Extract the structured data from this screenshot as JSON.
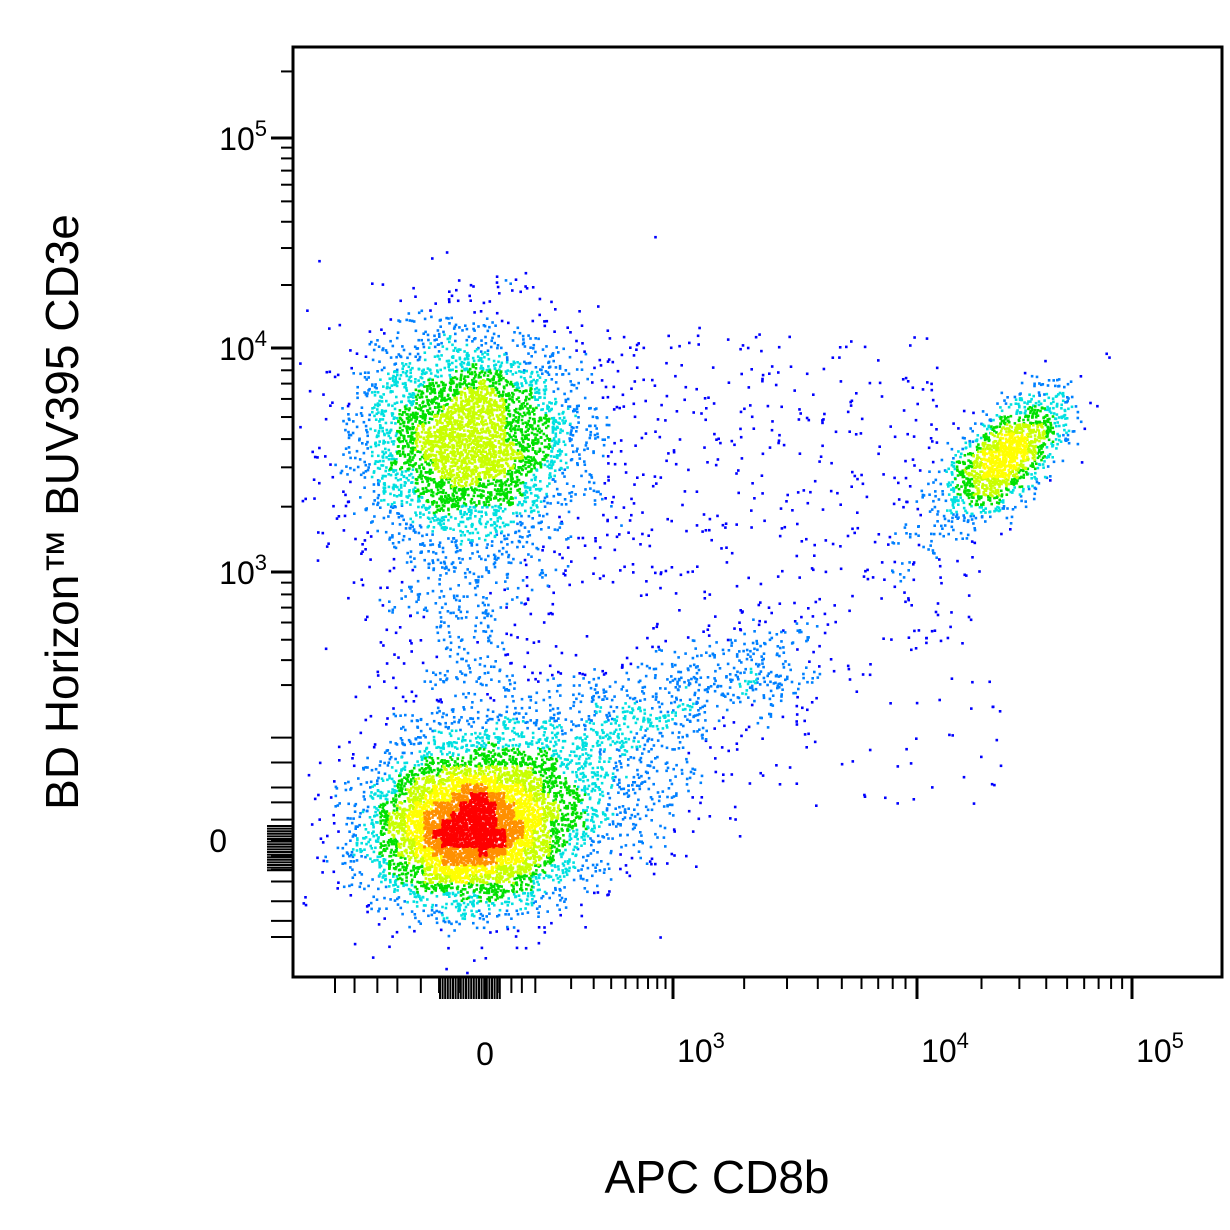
{
  "chart_data": {
    "type": "scatter",
    "plot_style": "flow-cytometry-density-dot-plot",
    "xlabel": "APC CD8b",
    "ylabel": "BD Horizon™ BUV395 CD3e",
    "x_scale": "biexponential",
    "y_scale": "biexponential",
    "xlim": [
      -200,
      150000
    ],
    "ylim": [
      -200,
      250000
    ],
    "x_ticks": [
      {
        "value": 0,
        "base": "0",
        "exp": ""
      },
      {
        "value": 1000,
        "base": "10",
        "exp": "3"
      },
      {
        "value": 10000,
        "base": "10",
        "exp": "4"
      },
      {
        "value": 100000,
        "base": "10",
        "exp": "5"
      }
    ],
    "y_ticks": [
      {
        "value": 0,
        "base": "0",
        "exp": ""
      },
      {
        "value": 1000,
        "base": "10",
        "exp": "3"
      },
      {
        "value": 10000,
        "base": "10",
        "exp": "4"
      },
      {
        "value": 100000,
        "base": "10",
        "exp": "5"
      }
    ],
    "density_colors": [
      "#0000ff",
      "#0080ff",
      "#00e0e0",
      "#00e000",
      "#c8ff00",
      "#ffff00",
      "#ff9000",
      "#ff0000"
    ],
    "populations": [
      {
        "description": "CD3e- CD8b-",
        "center_x": 0,
        "center_y": 0,
        "relative_density": "highest"
      },
      {
        "description": "CD3e+ CD8b-",
        "center_x": 0,
        "center_y": 4500,
        "relative_density": "high"
      },
      {
        "description": "CD3e+ CD8b+",
        "center_x": 27000,
        "center_y": 4200,
        "relative_density": "medium"
      }
    ],
    "grid": false,
    "legend": "none"
  }
}
